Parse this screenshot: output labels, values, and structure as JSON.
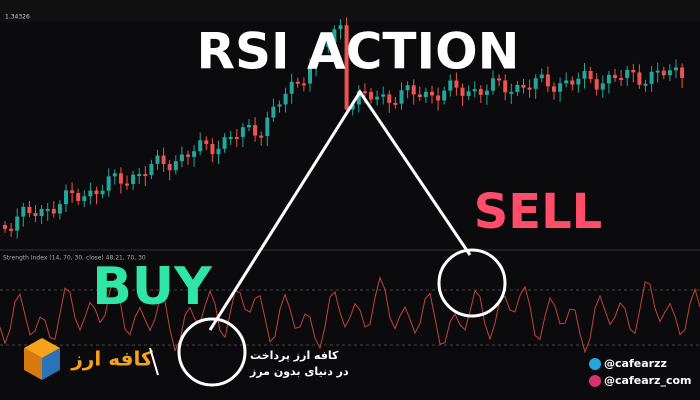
{
  "header": {
    "title": "RSI ACTION"
  },
  "labels": {
    "buy": "BUY",
    "sell": "SELL"
  },
  "indicator": {
    "name": "Strength Index (14, 70, 30, close) 48.21, 70, 30"
  },
  "price": {
    "value": "1.34326"
  },
  "brand": {
    "logo": "کافه ارز",
    "tagline": [
      "کافه ارز پرداخت",
      "در دنیای بدون مرز"
    ]
  },
  "social": [
    "@cafearzz",
    "@cafearz_com"
  ]
}
